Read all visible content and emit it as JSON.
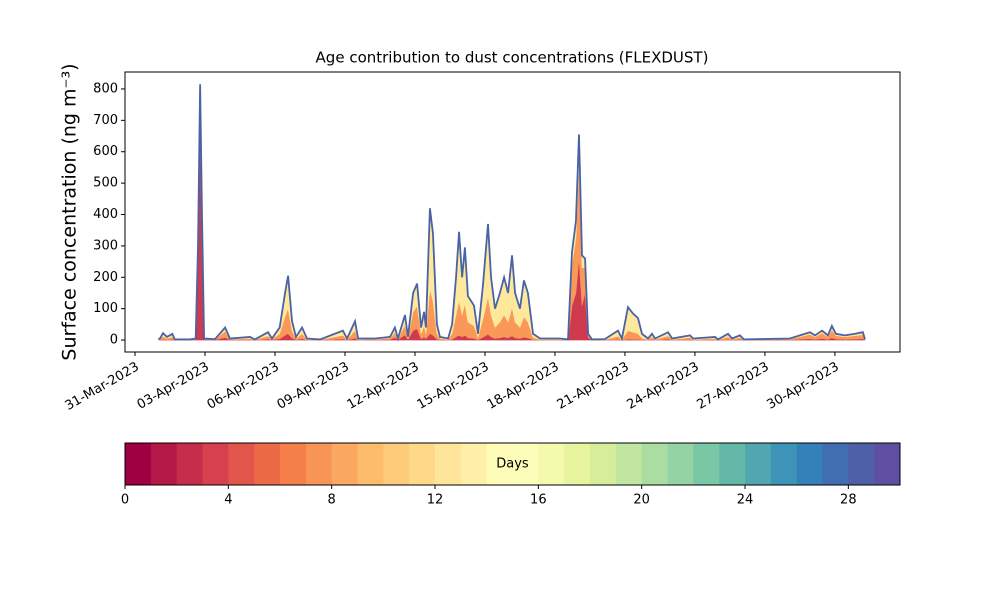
{
  "chart_data": {
    "type": "stacked_area",
    "title": "Age contribution to dust concentrations (FLEXDUST)",
    "ylabel": "Surface concentration (ng m⁻³)",
    "xlim": [
      -0.43,
      32.79
    ],
    "ylim": [
      -38,
      854
    ],
    "yticks": [
      0,
      100,
      200,
      300,
      400,
      500,
      600,
      700,
      800
    ],
    "xticks": [
      {
        "value": 0,
        "label": "31-Mar-2023"
      },
      {
        "value": 3,
        "label": "03-Apr-2023"
      },
      {
        "value": 6,
        "label": "06-Apr-2023"
      },
      {
        "value": 9,
        "label": "09-Apr-2023"
      },
      {
        "value": 12,
        "label": "12-Apr-2023"
      },
      {
        "value": 15,
        "label": "15-Apr-2023"
      },
      {
        "value": 18,
        "label": "18-Apr-2023"
      },
      {
        "value": 21,
        "label": "21-Apr-2023"
      },
      {
        "value": 24,
        "label": "24-Apr-2023"
      },
      {
        "value": 27,
        "label": "27-Apr-2023"
      },
      {
        "value": 30,
        "label": "30-Apr-2023"
      }
    ],
    "line_color": "#4a62a6",
    "x": [
      1.0,
      1.07,
      1.2,
      1.37,
      1.6,
      1.7,
      2.36,
      2.6,
      2.7,
      2.79,
      2.87,
      2.96,
      3.43,
      3.86,
      4.07,
      4.93,
      5.14,
      5.7,
      5.87,
      6.2,
      6.43,
      6.56,
      6.73,
      6.9,
      7.16,
      7.37,
      7.93,
      8.91,
      9.09,
      9.43,
      9.56,
      10.29,
      10.93,
      11.14,
      11.27,
      11.57,
      11.7,
      11.92,
      12.09,
      12.26,
      12.39,
      12.47,
      12.64,
      12.77,
      12.94,
      13.07,
      13.42,
      13.59,
      13.76,
      13.89,
      14.02,
      14.14,
      14.27,
      14.53,
      14.7,
      14.92,
      15.13,
      15.26,
      15.43,
      15.64,
      15.82,
      15.99,
      16.16,
      16.29,
      16.5,
      16.67,
      16.84,
      17.06,
      17.36,
      18.21,
      18.56,
      18.73,
      18.9,
      19.03,
      19.16,
      19.29,
      19.42,
      19.59,
      20.14,
      20.7,
      20.87,
      21.13,
      21.34,
      21.56,
      21.73,
      21.99,
      22.16,
      22.29,
      22.85,
      23.02,
      23.79,
      23.92,
      24.86,
      24.99,
      25.42,
      25.59,
      25.93,
      26.1,
      28.07,
      28.93,
      29.15,
      29.45,
      29.7,
      29.87,
      30.04,
      30.43,
      30.86,
      31.2,
      31.29
    ],
    "series": [
      {
        "color": "#cf3a4d",
        "values": [
          0,
          0,
          2,
          1,
          2,
          0,
          0,
          2,
          240,
          650,
          320,
          2,
          1,
          8,
          1,
          1,
          0,
          3,
          1,
          4,
          15,
          20,
          6,
          1,
          4,
          0,
          0,
          3,
          0,
          6,
          0,
          1,
          2,
          8,
          1,
          16,
          2,
          30,
          36,
          4,
          9,
          4,
          20,
          15,
          3,
          1,
          0,
          2,
          10,
          15,
          10,
          15,
          7,
          5,
          1,
          9,
          18,
          10,
          5,
          7,
          10,
          7,
          13,
          7,
          5,
          9,
          7,
          1,
          0,
          0,
          0,
          110,
          150,
          260,
          110,
          150,
          8,
          0,
          0,
          2,
          0,
          3,
          2,
          2,
          1,
          0,
          2,
          0,
          3,
          0,
          2,
          0,
          1,
          0,
          2,
          0,
          2,
          0,
          1,
          4,
          2,
          5,
          2,
          7,
          3,
          2,
          3,
          4,
          0
        ]
      },
      {
        "color": "#f99857",
        "values": [
          1,
          2,
          9,
          4,
          8,
          1,
          1,
          2,
          45,
          125,
          60,
          2,
          1,
          20,
          2,
          4,
          1,
          10,
          2,
          16,
          60,
          80,
          24,
          4,
          16,
          2,
          1,
          12,
          2,
          24,
          2,
          2,
          4,
          16,
          2,
          32,
          4,
          60,
          72,
          16,
          36,
          16,
          140,
          110,
          17,
          4,
          2,
          18,
          70,
          110,
          70,
          100,
          50,
          40,
          7,
          60,
          120,
          70,
          35,
          50,
          70,
          50,
          90,
          50,
          35,
          65,
          50,
          7,
          2,
          2,
          1,
          130,
          175,
          300,
          120,
          80,
          8,
          1,
          1,
          10,
          2,
          27,
          23,
          18,
          5,
          2,
          8,
          2,
          10,
          2,
          6,
          2,
          4,
          1,
          8,
          2,
          6,
          1,
          2,
          14,
          8,
          17,
          8,
          25,
          11,
          8,
          11,
          13,
          1
        ]
      },
      {
        "color": "#fee89b",
        "values": [
          2,
          3,
          11,
          5,
          10,
          1,
          1,
          1,
          15,
          40,
          20,
          1,
          1,
          12,
          2,
          5,
          1,
          12,
          2,
          20,
          75,
          105,
          30,
          5,
          20,
          3,
          1,
          15,
          3,
          30,
          3,
          2,
          4,
          16,
          2,
          32,
          4,
          60,
          72,
          20,
          45,
          20,
          260,
          215,
          30,
          5,
          3,
          30,
          120,
          220,
          120,
          180,
          83,
          65,
          12,
          111,
          232,
          120,
          60,
          93,
          120,
          93,
          167,
          93,
          60,
          116,
          93,
          12,
          3,
          3,
          1,
          40,
          55,
          95,
          40,
          30,
          4,
          1,
          2,
          18,
          3,
          75,
          60,
          50,
          14,
          3,
          10,
          3,
          12,
          3,
          7,
          3,
          5,
          1,
          10,
          3,
          7,
          1,
          2,
          7,
          5,
          8,
          5,
          13,
          6,
          5,
          6,
          8,
          1
        ]
      }
    ],
    "colorbar": {
      "label": "Days",
      "lim": [
        0,
        30
      ],
      "ticks": [
        0,
        4,
        8,
        12,
        16,
        20,
        24,
        28
      ],
      "colors": [
        "#9e0142",
        "#b41947",
        "#c62d4b",
        "#d7404e",
        "#e2554a",
        "#ec6a45",
        "#f47f4b",
        "#f89455",
        "#fba860",
        "#fdbb6c",
        "#fdcb7a",
        "#fed98a",
        "#fee59a",
        "#fff0a9",
        "#fffbb9",
        "#fbfdb8",
        "#f3faae",
        "#e8f59f",
        "#d6ee9b",
        "#c2e69f",
        "#abdda3",
        "#93d3a4",
        "#7ac7a5",
        "#63b8a8",
        "#50a7af",
        "#3e94b8",
        "#3481ba",
        "#416eb0",
        "#5060a8",
        "#5e4fa2"
      ]
    }
  }
}
